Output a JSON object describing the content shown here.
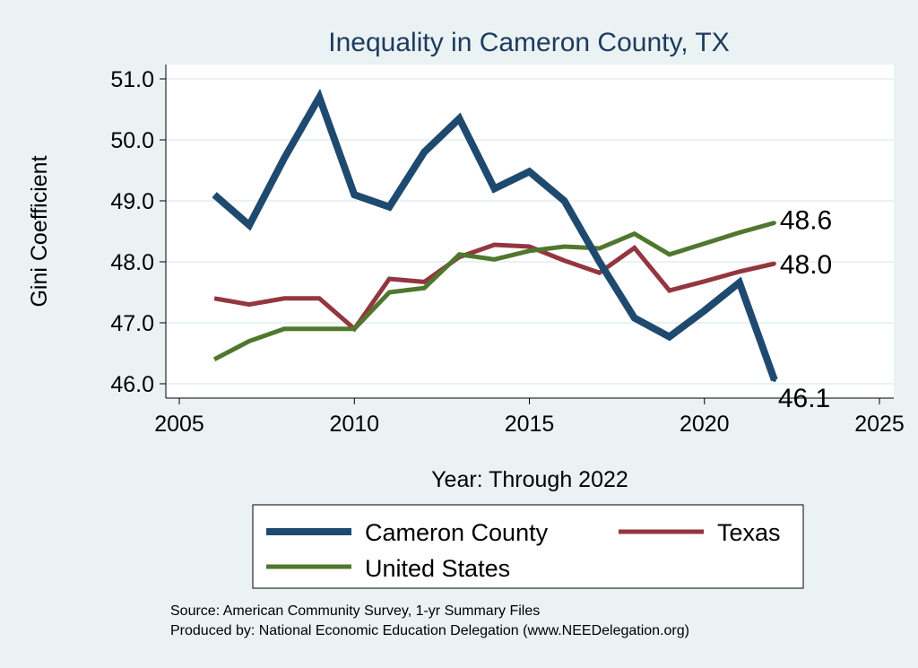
{
  "chart_data": {
    "type": "line",
    "title": "Inequality in Cameron County, TX",
    "xlabel": "Year: Through 2022",
    "ylabel": "Gini Coefficient",
    "xlim": [
      2005,
      2025
    ],
    "ylim": [
      46.0,
      51.0
    ],
    "x_ticks": [
      2005,
      2010,
      2015,
      2020,
      2025
    ],
    "y_ticks": [
      46.0,
      47.0,
      48.0,
      49.0,
      50.0,
      51.0
    ],
    "y_tick_labels": [
      "46.0",
      "47.0",
      "48.0",
      "49.0",
      "50.0",
      "51.0"
    ],
    "grid": true,
    "x": [
      2006,
      2007,
      2008,
      2009,
      2010,
      2011,
      2012,
      2013,
      2014,
      2015,
      2016,
      2017,
      2018,
      2019,
      2020,
      2021,
      2022
    ],
    "series": [
      {
        "name": "Cameron County",
        "color": "#1f4a70",
        "values": [
          49.1,
          48.6,
          49.7,
          50.7,
          49.1,
          48.9,
          49.8,
          50.35,
          49.2,
          49.48,
          49.0,
          48.0,
          47.08,
          46.77,
          47.2,
          47.66,
          46.06
        ],
        "end_label": "46.1"
      },
      {
        "name": "Texas",
        "color": "#93363f",
        "values": [
          47.4,
          47.3,
          47.4,
          47.4,
          46.9,
          47.72,
          47.67,
          48.08,
          48.28,
          48.25,
          48.02,
          47.82,
          48.23,
          47.53,
          47.68,
          47.84,
          47.97
        ],
        "end_label": "48.0"
      },
      {
        "name": "United States",
        "color": "#50772d",
        "values": [
          46.4,
          46.7,
          46.9,
          46.9,
          46.9,
          47.5,
          47.57,
          48.12,
          48.04,
          48.18,
          48.25,
          48.22,
          48.46,
          48.12,
          48.3,
          48.48,
          48.64
        ],
        "end_label": "48.6"
      }
    ],
    "legend": {
      "placement": "bottom",
      "entries": [
        "Cameron County",
        "Texas",
        "United States"
      ]
    },
    "notes": [
      "Source: American Community Survey, 1-yr Summary Files",
      "Produced by: National Economic Education Delegation (www.NEEDelegation.org)"
    ]
  }
}
